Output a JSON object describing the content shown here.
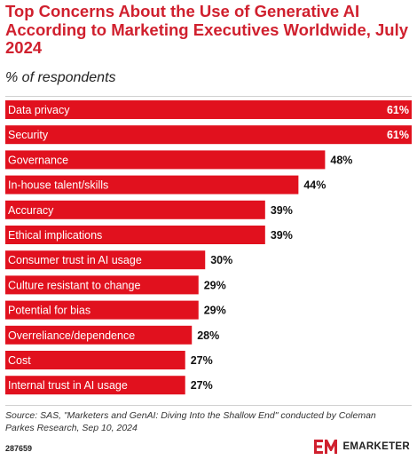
{
  "header": {
    "title": "Top Concerns About the Use of Generative AI According to Marketing Executives Worldwide, July 2024",
    "subtitle": "% of respondents"
  },
  "colors": {
    "accent": "#d0202e",
    "bar": "#e1111e",
    "label_on_bar": "#ffffff",
    "value_outside": "#111111"
  },
  "chart_data": {
    "type": "bar",
    "orientation": "horizontal",
    "title": "Top Concerns About the Use of Generative AI According to Marketing Executives Worldwide, July 2024",
    "subtitle": "% of respondents",
    "categories": [
      "Data privacy",
      "Security",
      "Governance",
      "In-house talent/skills",
      "Accuracy",
      "Ethical implications",
      "Consumer trust in AI usage",
      "Culture resistant to change",
      "Potential for bias",
      "Overreliance/dependence",
      "Cost",
      "Internal trust in AI usage"
    ],
    "values": [
      61,
      61,
      48,
      44,
      39,
      39,
      30,
      29,
      29,
      28,
      27,
      27
    ],
    "value_labels": [
      "61%",
      "61%",
      "48%",
      "44%",
      "39%",
      "39%",
      "30%",
      "29%",
      "29%",
      "28%",
      "27%",
      "27%"
    ],
    "xlim": [
      0,
      61
    ],
    "grid": false,
    "legend": "none"
  },
  "footer": {
    "source": "Source: SAS, \"Marketers and GenAI: Diving Into the Shallow End\" conducted by Coleman Parkes Research, Sep 10, 2024",
    "chart_id": "287659",
    "brand": "EMARKETER"
  }
}
